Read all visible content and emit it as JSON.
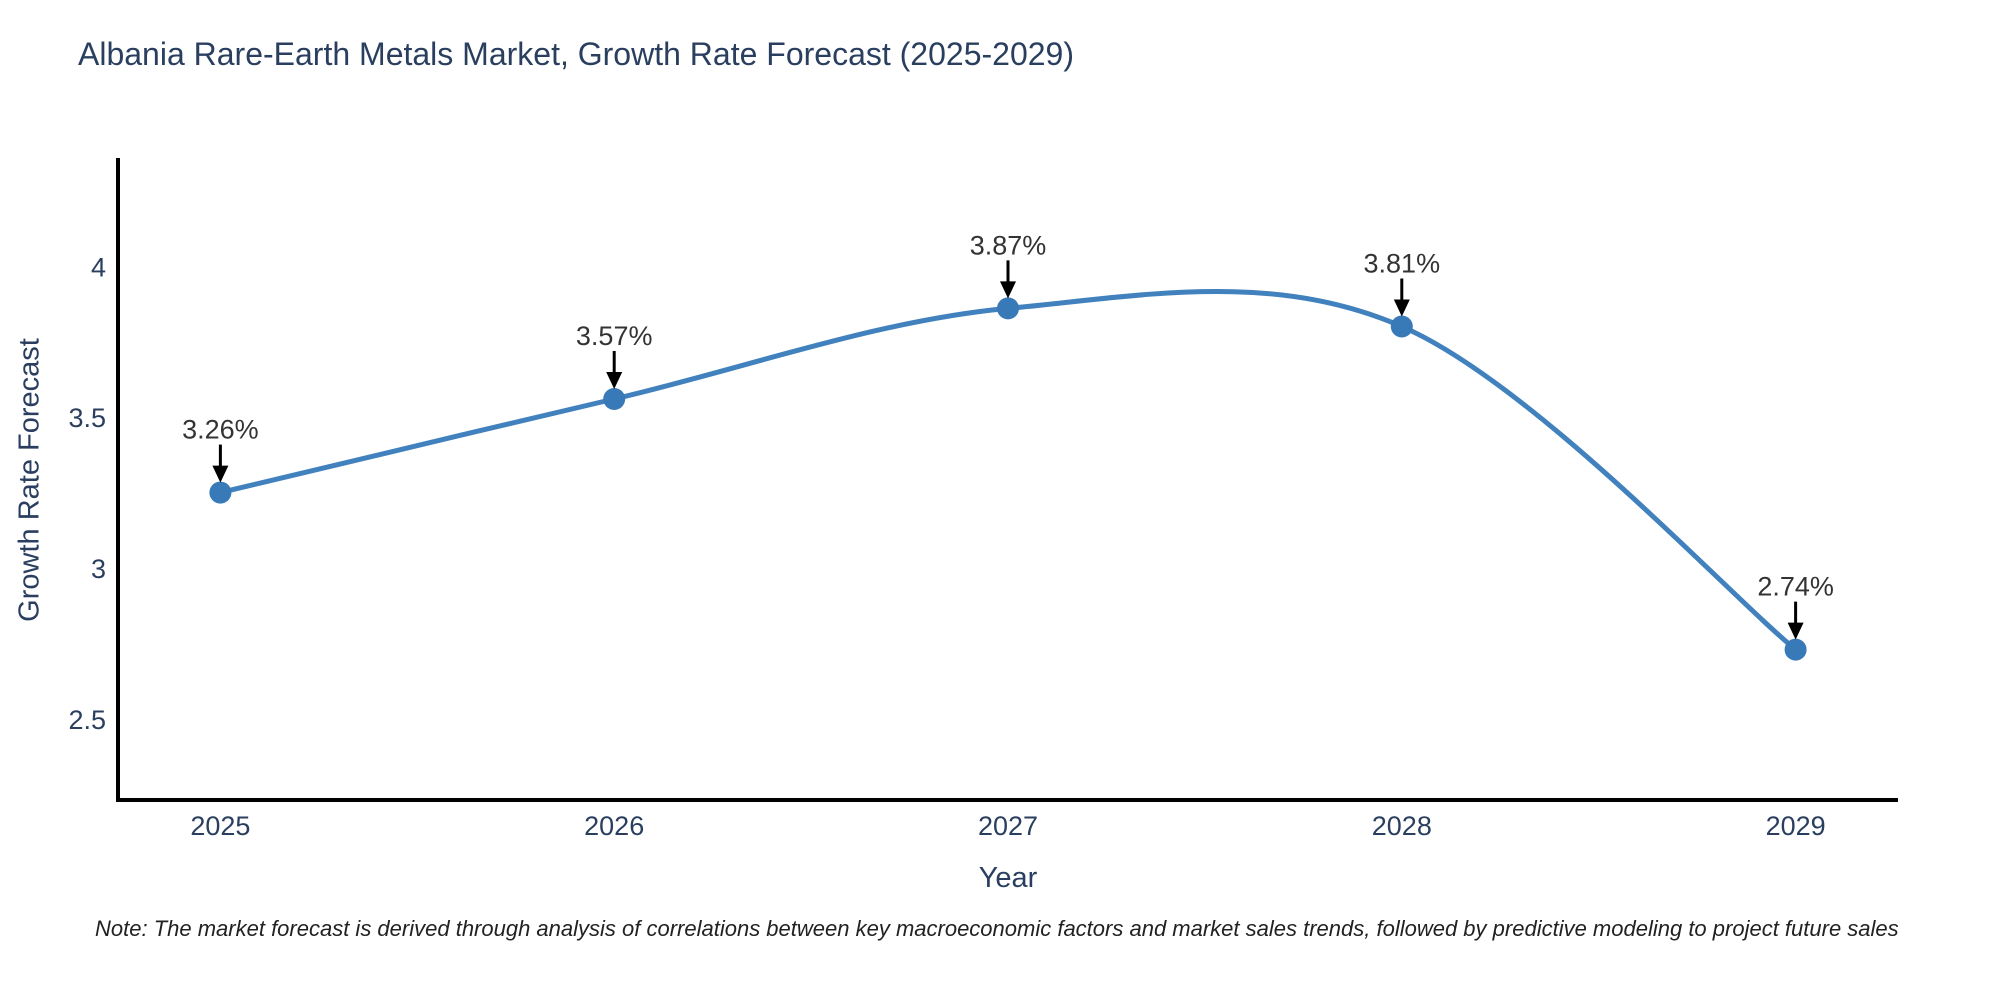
{
  "chart": {
    "title": "Albania Rare-Earth Metals Market, Growth Rate Forecast (2025-2029)",
    "xlabel": "Year",
    "ylabel": "Growth Rate Forecast",
    "note": "Note: The market forecast is derived through analysis of correlations between key macroeconomic factors and market sales trends, followed by predictive modeling to project future sales"
  },
  "chart_data": {
    "type": "line",
    "title": "Albania Rare-Earth Metals Market, Growth Rate Forecast (2025-2029)",
    "xlabel": "Year",
    "ylabel": "Growth Rate Forecast",
    "x": [
      2025,
      2026,
      2027,
      2028,
      2029
    ],
    "values": [
      3.26,
      3.57,
      3.87,
      3.81,
      2.74
    ],
    "point_labels": [
      "3.26%",
      "3.57%",
      "3.87%",
      "3.81%",
      "2.74%"
    ],
    "xtick_labels": [
      "2025",
      "2026",
      "2027",
      "2028",
      "2029"
    ],
    "yticks": [
      2.5,
      3,
      3.5,
      4
    ],
    "ytick_labels": [
      "2.5",
      "3",
      "3.5",
      "4"
    ],
    "xlim": [
      2024.74,
      2029.26
    ],
    "ylim": [
      2.242,
      4.368
    ],
    "grid": false,
    "line_shape": "spline",
    "legend": "none",
    "colors": {
      "line": "#4181bd",
      "marker": "#3879b8",
      "axis": "#000000",
      "tick_text": "#2a3f5f",
      "annotation_text": "#333333",
      "arrow": "#000000"
    }
  }
}
